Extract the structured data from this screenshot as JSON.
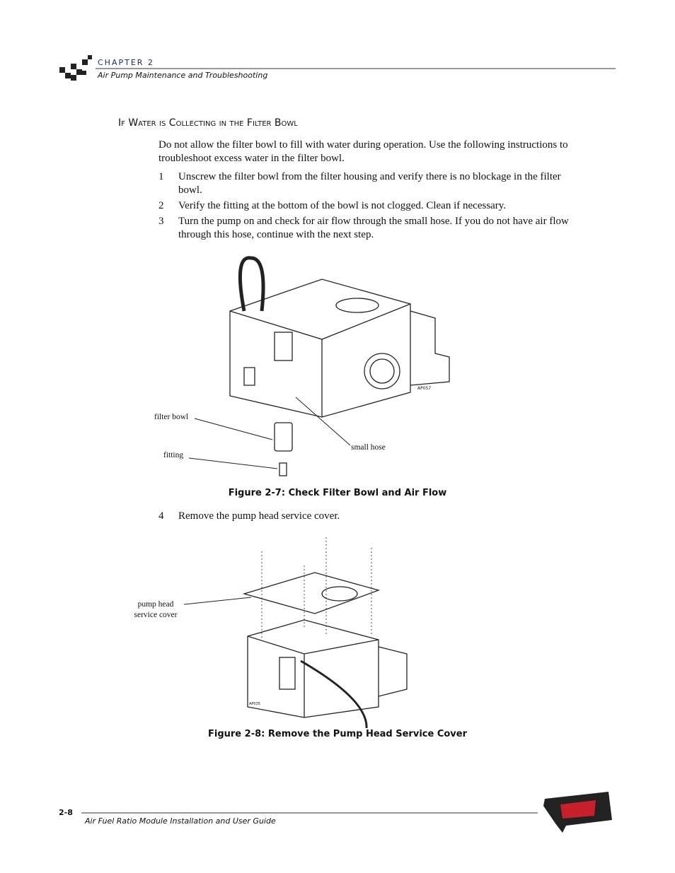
{
  "header": {
    "chapter": "CHAPTER 2",
    "subtitle": "Air Pump Maintenance and Troubleshooting"
  },
  "section": {
    "heading": "If Water is Collecting in the Filter Bowl",
    "intro": "Do not allow the filter bowl to fill with water during operation. Use the following instructions to troubleshoot excess water in the filter bowl.",
    "steps": [
      {
        "number": "1",
        "text": "Unscrew the filter bowl from the filter housing and verify there is no blockage in the filter bowl."
      },
      {
        "number": "2",
        "text": "Verify the fitting at the bottom of the bowl is not clogged. Clean if necessary."
      },
      {
        "number": "3",
        "text": "Turn the pump on and check for air flow through the small hose. If you do not have air flow through this hose, continue with the next step."
      }
    ],
    "figure1": {
      "labels": {
        "filter_bowl": "filter bowl",
        "fitting": "fitting",
        "small_hose": "small hose",
        "code": "AP057"
      },
      "caption": "Figure 2-7: Check Filter Bowl and Air Flow"
    },
    "step4": {
      "number": "4",
      "text": "Remove the pump head service cover."
    },
    "figure2": {
      "labels": {
        "cover": "pump head service cover",
        "code": "AP035"
      },
      "caption": "Figure 2-8: Remove the Pump Head Service Cover"
    }
  },
  "footer": {
    "page": "2-8",
    "title": "Air Fuel Ratio Module Installation and User Guide"
  }
}
